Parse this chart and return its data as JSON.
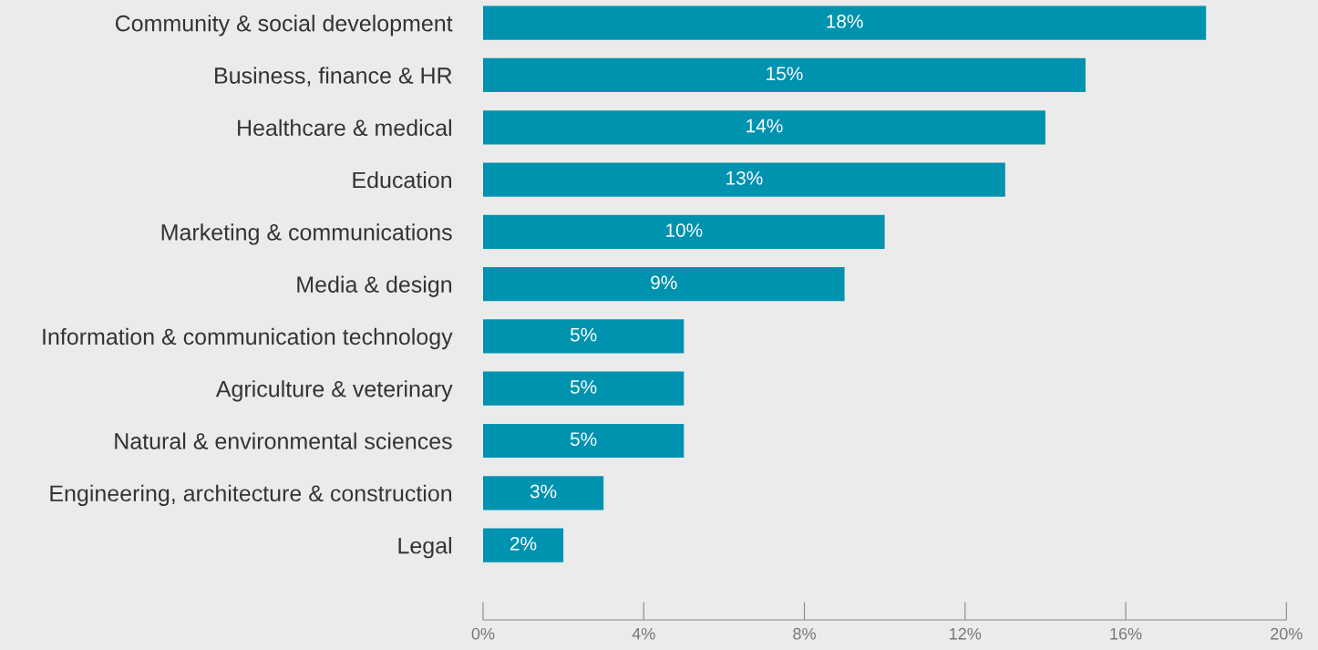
{
  "chart_data": {
    "type": "bar",
    "orientation": "horizontal",
    "categories": [
      "Community & social development",
      "Business, finance & HR",
      "Healthcare & medical",
      "Education",
      "Marketing & communications",
      "Media & design",
      "Information & communication technology",
      "Agriculture & veterinary",
      "Natural & environmental sciences",
      "Engineering, architecture & construction",
      "Legal"
    ],
    "values": [
      18,
      15,
      14,
      13,
      10,
      9,
      5,
      5,
      5,
      3,
      2
    ],
    "value_labels": [
      "18%",
      "15%",
      "14%",
      "13%",
      "10%",
      "9%",
      "5%",
      "5%",
      "5%",
      "3%",
      "2%"
    ],
    "color": "#0093b0",
    "xlim": [
      0,
      20
    ],
    "xticks": [
      {
        "value": 0,
        "label": "0%"
      },
      {
        "value": 4,
        "label": "4%"
      },
      {
        "value": 8,
        "label": "8%"
      },
      {
        "value": 12,
        "label": "12%"
      },
      {
        "value": 16,
        "label": "16%"
      },
      {
        "value": 20,
        "label": "20%"
      }
    ],
    "grid": false
  }
}
